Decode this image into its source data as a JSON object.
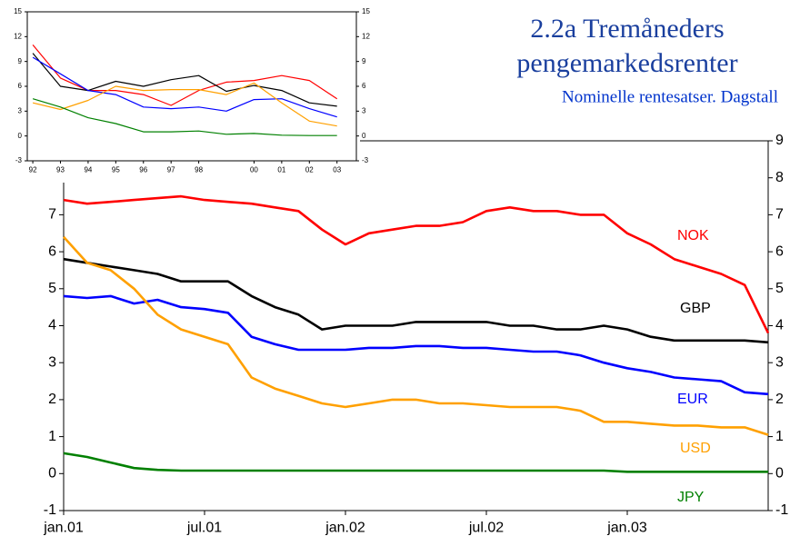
{
  "chart_data": [
    {
      "type": "line",
      "title": [
        "2.2a Tremåneders",
        "pengemarkedsrenter"
      ],
      "subtitle": "Nominelle rentesatser. Dagstall",
      "x": [
        "2001-01",
        "2001-02",
        "2001-03",
        "2001-04",
        "2001-05",
        "2001-06",
        "2001-07",
        "2001-08",
        "2001-09",
        "2001-10",
        "2001-11",
        "2001-12",
        "2002-01",
        "2002-02",
        "2002-03",
        "2002-04",
        "2002-05",
        "2002-06",
        "2002-07",
        "2002-08",
        "2002-09",
        "2002-10",
        "2002-11",
        "2002-12",
        "2003-01",
        "2003-02",
        "2003-03",
        "2003-04",
        "2003-05",
        "2003-06",
        "2003-07"
      ],
      "xlim": [
        "2001-01",
        "2003-07"
      ],
      "xticks": [
        {
          "value": "2001-01",
          "label": "jan.01"
        },
        {
          "value": "2001-07",
          "label": "jul.01"
        },
        {
          "value": "2002-01",
          "label": "jan.02"
        },
        {
          "value": "2002-07",
          "label": "jul.02"
        },
        {
          "value": "2003-01",
          "label": "jan.03"
        }
      ],
      "ylim": [
        -1,
        9
      ],
      "yticks": [
        -1,
        0,
        1,
        2,
        3,
        4,
        5,
        6,
        7,
        8,
        9
      ],
      "y2lim": [
        -1,
        9
      ],
      "y2ticks": [
        -1,
        0,
        1,
        2,
        3,
        4,
        5,
        6,
        7,
        8,
        9
      ],
      "series": [
        {
          "name": "NOK",
          "color": "#ff0000",
          "values": [
            7.4,
            7.3,
            7.35,
            7.4,
            7.45,
            7.5,
            7.4,
            7.35,
            7.3,
            7.2,
            7.1,
            6.6,
            6.2,
            6.5,
            6.6,
            6.7,
            6.7,
            6.8,
            7.1,
            7.2,
            7.1,
            7.1,
            7.0,
            7.0,
            6.5,
            6.2,
            5.8,
            5.6,
            5.4,
            5.1,
            3.8
          ]
        },
        {
          "name": "GBP",
          "color": "#000000",
          "values": [
            5.8,
            5.7,
            5.6,
            5.5,
            5.4,
            5.2,
            5.2,
            5.2,
            4.8,
            4.5,
            4.3,
            3.9,
            4.0,
            4.0,
            4.0,
            4.1,
            4.1,
            4.1,
            4.1,
            4.0,
            4.0,
            3.9,
            3.9,
            4.0,
            3.9,
            3.7,
            3.6,
            3.6,
            3.6,
            3.6,
            3.55
          ]
        },
        {
          "name": "EUR",
          "color": "#0000ff",
          "values": [
            4.8,
            4.75,
            4.8,
            4.6,
            4.7,
            4.5,
            4.45,
            4.35,
            3.7,
            3.5,
            3.35,
            3.35,
            3.35,
            3.4,
            3.4,
            3.45,
            3.45,
            3.4,
            3.4,
            3.35,
            3.3,
            3.3,
            3.2,
            3.0,
            2.85,
            2.75,
            2.6,
            2.55,
            2.5,
            2.2,
            2.15
          ]
        },
        {
          "name": "USD",
          "color": "#ffa000",
          "values": [
            6.4,
            5.7,
            5.5,
            5.0,
            4.3,
            3.9,
            3.7,
            3.5,
            2.6,
            2.3,
            2.1,
            1.9,
            1.8,
            1.9,
            2.0,
            2.0,
            1.9,
            1.9,
            1.85,
            1.8,
            1.8,
            1.8,
            1.7,
            1.4,
            1.4,
            1.35,
            1.3,
            1.3,
            1.25,
            1.25,
            1.05
          ]
        },
        {
          "name": "JPY",
          "color": "#008000",
          "values": [
            0.55,
            0.45,
            0.3,
            0.15,
            0.1,
            0.08,
            0.08,
            0.08,
            0.08,
            0.08,
            0.08,
            0.08,
            0.08,
            0.08,
            0.08,
            0.08,
            0.08,
            0.08,
            0.08,
            0.08,
            0.08,
            0.08,
            0.08,
            0.08,
            0.05,
            0.05,
            0.05,
            0.05,
            0.05,
            0.05,
            0.05
          ]
        }
      ]
    },
    {
      "type": "line",
      "x": [
        1992,
        1993,
        1994,
        1995,
        1996,
        1997,
        1998,
        1999,
        2000,
        2001,
        2002,
        2003
      ],
      "xlim": [
        1991.8,
        2003.7
      ],
      "xticks": [
        {
          "value": 1992,
          "label": "92"
        },
        {
          "value": 1993,
          "label": "93"
        },
        {
          "value": 1994,
          "label": "94"
        },
        {
          "value": 1995,
          "label": "95"
        },
        {
          "value": 1996,
          "label": "96"
        },
        {
          "value": 1997,
          "label": "97"
        },
        {
          "value": 1998,
          "label": "98"
        },
        {
          "value": 2000,
          "label": "00"
        },
        {
          "value": 2001,
          "label": "01"
        },
        {
          "value": 2002,
          "label": "02"
        },
        {
          "value": 2003,
          "label": "03"
        }
      ],
      "ylim": [
        -3,
        15
      ],
      "yticks": [
        -3,
        0,
        3,
        6,
        9,
        12,
        15
      ],
      "y2lim": [
        -3,
        15
      ],
      "y2ticks": [
        -3,
        0,
        3,
        6,
        9,
        12,
        15
      ],
      "series": [
        {
          "name": "NOK",
          "color": "#ff0000",
          "values": [
            11,
            7,
            5.5,
            5.5,
            5,
            3.7,
            5.5,
            6.5,
            6.7,
            7.3,
            6.7,
            4.5
          ]
        },
        {
          "name": "GBP",
          "color": "#000000",
          "values": [
            10,
            6,
            5.5,
            6.6,
            6,
            6.8,
            7.3,
            5.4,
            6.1,
            5.5,
            4.0,
            3.6
          ]
        },
        {
          "name": "EUR",
          "color": "#0000ff",
          "values": [
            9.5,
            7.5,
            5.5,
            5,
            3.5,
            3.3,
            3.5,
            3,
            4.4,
            4.5,
            3.3,
            2.3
          ]
        },
        {
          "name": "USD",
          "color": "#ffa000",
          "values": [
            4,
            3.2,
            4.3,
            6,
            5.5,
            5.6,
            5.6,
            5,
            6.4,
            4.0,
            1.8,
            1.2
          ]
        },
        {
          "name": "JPY",
          "color": "#008000",
          "values": [
            4.5,
            3.5,
            2.2,
            1.5,
            0.5,
            0.5,
            0.6,
            0.2,
            0.3,
            0.1,
            0.05,
            0.05
          ]
        }
      ]
    }
  ]
}
